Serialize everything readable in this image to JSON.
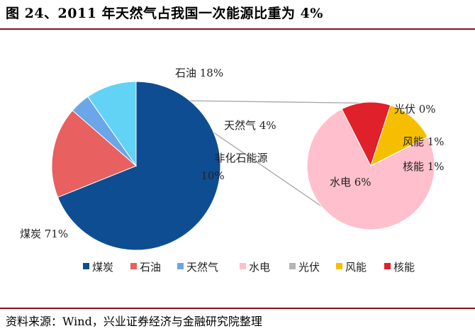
{
  "header": {
    "title": "图 24、2011 年天然气占我国一次能源比重为 4%"
  },
  "footer": {
    "source": "资料来源：Wind，兴业证券经济与金融研究院整理"
  },
  "chart_data": [
    {
      "type": "pie",
      "slices": [
        {
          "name": "煤炭",
          "value": 71,
          "label": "煤炭 71%",
          "color": "#0e4d92"
        },
        {
          "name": "石油",
          "value": 18,
          "label": "石油 18%",
          "color": "#e86060"
        },
        {
          "name": "天然气",
          "value": 4,
          "label": "天然气 4%",
          "color": "#6aa6e8"
        },
        {
          "name": "非化石能源",
          "value": 10,
          "label_line1": "非化石能源",
          "label_line2": "10%",
          "color": "#62d3f5"
        }
      ]
    },
    {
      "type": "pie",
      "slices": [
        {
          "name": "水电",
          "value": 6,
          "label": "水电 6%",
          "color": "#ffbfcc"
        },
        {
          "name": "核能",
          "value": 1,
          "label": "核能 1%",
          "color": "#e0202a"
        },
        {
          "name": "风能",
          "value": 1,
          "label": "风能 1%",
          "color": "#f5bf00"
        },
        {
          "name": "光伏",
          "value": 0,
          "label": "光伏 0%",
          "color": "#b5b5b5"
        }
      ]
    }
  ],
  "legend": [
    {
      "name": "煤炭",
      "color": "#0e4d92"
    },
    {
      "name": "石油",
      "color": "#e86060"
    },
    {
      "name": "天然气",
      "color": "#6aa6e8"
    },
    {
      "name": "水电",
      "color": "#ffbfcc"
    },
    {
      "name": "光伏",
      "color": "#b5b5b5"
    },
    {
      "name": "风能",
      "color": "#f5bf00"
    },
    {
      "name": "核能",
      "color": "#e0202a"
    }
  ]
}
